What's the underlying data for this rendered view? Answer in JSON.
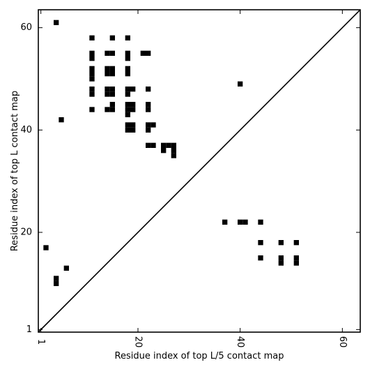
{
  "chart_data": {
    "type": "heatmap",
    "title": "",
    "xlabel": "Residue index of top L/5 contact map",
    "ylabel": "Residue index of top L contact map",
    "xlim": [
      0.5,
      63.5
    ],
    "ylim": [
      0.5,
      63.5
    ],
    "x_ticks": [
      {
        "value": 1,
        "label": "1"
      },
      {
        "value": 20,
        "label": "20"
      },
      {
        "value": 40,
        "label": "40"
      },
      {
        "value": 60,
        "label": "60"
      }
    ],
    "y_ticks": [
      {
        "value": 1,
        "label": "1"
      },
      {
        "value": 20,
        "label": "20"
      },
      {
        "value": 40,
        "label": "40"
      },
      {
        "value": 60,
        "label": "60"
      }
    ],
    "grid": false,
    "legend": "none",
    "diagonal_line": true,
    "cell_color": "#000000",
    "background_color": "#ffffff",
    "upper_triangle_contacts": [
      [
        4,
        61
      ],
      [
        11,
        58
      ],
      [
        15,
        58
      ],
      [
        18,
        58
      ],
      [
        11,
        55
      ],
      [
        11,
        54
      ],
      [
        14,
        55
      ],
      [
        15,
        55
      ],
      [
        18,
        55
      ],
      [
        18,
        54
      ],
      [
        21,
        55
      ],
      [
        22,
        55
      ],
      [
        11,
        52
      ],
      [
        11,
        51
      ],
      [
        11,
        50
      ],
      [
        14,
        52
      ],
      [
        15,
        52
      ],
      [
        14,
        51
      ],
      [
        15,
        51
      ],
      [
        18,
        52
      ],
      [
        18,
        51
      ],
      [
        40,
        49
      ],
      [
        11,
        48
      ],
      [
        11,
        47
      ],
      [
        14,
        48
      ],
      [
        15,
        48
      ],
      [
        14,
        47
      ],
      [
        15,
        47
      ],
      [
        18,
        48
      ],
      [
        19,
        48
      ],
      [
        18,
        47
      ],
      [
        22,
        48
      ],
      [
        15,
        45
      ],
      [
        18,
        45
      ],
      [
        19,
        45
      ],
      [
        22,
        45
      ],
      [
        11,
        44
      ],
      [
        14,
        44
      ],
      [
        15,
        44
      ],
      [
        18,
        44
      ],
      [
        19,
        44
      ],
      [
        22,
        44
      ],
      [
        18,
        43
      ],
      [
        5,
        42
      ],
      [
        18,
        41
      ],
      [
        19,
        41
      ],
      [
        22,
        41
      ],
      [
        23,
        41
      ],
      [
        18,
        40
      ],
      [
        19,
        40
      ],
      [
        22,
        40
      ],
      [
        22,
        37
      ],
      [
        23,
        37
      ],
      [
        25,
        37
      ],
      [
        26,
        37
      ],
      [
        27,
        37
      ],
      [
        25,
        36
      ],
      [
        27,
        36
      ],
      [
        27,
        35
      ]
    ],
    "lower_triangle_contacts": [
      [
        37,
        22
      ],
      [
        40,
        22
      ],
      [
        41,
        22
      ],
      [
        44,
        22
      ],
      [
        44,
        18
      ],
      [
        48,
        18
      ],
      [
        51,
        18
      ],
      [
        2,
        17
      ],
      [
        44,
        15
      ],
      [
        48,
        15
      ],
      [
        51,
        15
      ],
      [
        48,
        14
      ],
      [
        51,
        14
      ],
      [
        6,
        13
      ],
      [
        4,
        11
      ],
      [
        4,
        10
      ]
    ]
  }
}
